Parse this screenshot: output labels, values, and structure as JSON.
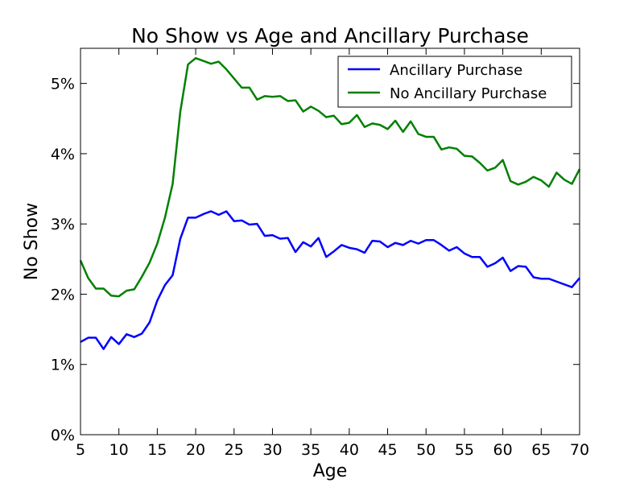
{
  "chart_data": {
    "type": "line",
    "title": "No Show vs Age and Ancillary Purchase",
    "xlabel": "Age",
    "ylabel": "No Show",
    "xlim": [
      5,
      70
    ],
    "ylim": [
      0,
      0.055
    ],
    "x_ticks": [
      5,
      10,
      15,
      20,
      25,
      30,
      35,
      40,
      45,
      50,
      55,
      60,
      65,
      70
    ],
    "x_tick_labels": [
      "5",
      "10",
      "15",
      "20",
      "25",
      "30",
      "35",
      "40",
      "45",
      "50",
      "55",
      "60",
      "65",
      "70"
    ],
    "y_ticks": [
      0,
      0.01,
      0.02,
      0.03,
      0.04,
      0.05
    ],
    "y_tick_labels": [
      "0%",
      "1%",
      "2%",
      "3%",
      "4%",
      "5%"
    ],
    "legend_position": "top-right",
    "grid": false,
    "x": [
      5,
      6,
      7,
      8,
      9,
      10,
      11,
      12,
      13,
      14,
      15,
      16,
      17,
      18,
      19,
      20,
      21,
      22,
      23,
      24,
      25,
      26,
      27,
      28,
      29,
      30,
      31,
      32,
      33,
      34,
      35,
      36,
      37,
      38,
      39,
      40,
      41,
      42,
      43,
      44,
      45,
      46,
      47,
      48,
      49,
      50,
      51,
      52,
      53,
      54,
      55,
      56,
      57,
      58,
      59,
      60,
      61,
      62,
      63,
      64,
      65,
      66,
      67,
      68,
      69,
      70
    ],
    "series": [
      {
        "name": "Ancillary Purchase",
        "color": "#0000ff",
        "values": [
          0.0132,
          0.0138,
          0.0138,
          0.0122,
          0.0139,
          0.0129,
          0.0143,
          0.0139,
          0.0144,
          0.016,
          0.0191,
          0.0213,
          0.0227,
          0.0279,
          0.0309,
          0.0309,
          0.0314,
          0.0318,
          0.0313,
          0.0318,
          0.0304,
          0.0305,
          0.0299,
          0.03,
          0.0283,
          0.0284,
          0.0279,
          0.028,
          0.026,
          0.0274,
          0.0268,
          0.028,
          0.0253,
          0.0261,
          0.027,
          0.0266,
          0.0264,
          0.0259,
          0.0276,
          0.0275,
          0.0267,
          0.0273,
          0.027,
          0.0276,
          0.0272,
          0.0277,
          0.0277,
          0.027,
          0.0262,
          0.0267,
          0.0258,
          0.0253,
          0.0253,
          0.0239,
          0.0244,
          0.0252,
          0.0233,
          0.024,
          0.0239,
          0.0224,
          0.0222,
          0.0222,
          0.0218,
          0.0214,
          0.021,
          0.0223
        ]
      },
      {
        "name": "No Ancillary Purchase",
        "color": "#008000",
        "values": [
          0.0248,
          0.0223,
          0.0208,
          0.0208,
          0.0198,
          0.0197,
          0.0205,
          0.0207,
          0.0225,
          0.0245,
          0.0272,
          0.0309,
          0.0357,
          0.046,
          0.0527,
          0.0536,
          0.0532,
          0.0528,
          0.0531,
          0.052,
          0.0507,
          0.0494,
          0.0494,
          0.0477,
          0.0482,
          0.0481,
          0.0482,
          0.0475,
          0.0476,
          0.046,
          0.0467,
          0.0461,
          0.0452,
          0.0454,
          0.0442,
          0.0444,
          0.0455,
          0.0438,
          0.0443,
          0.0441,
          0.0435,
          0.0447,
          0.0431,
          0.0446,
          0.0428,
          0.0424,
          0.0424,
          0.0406,
          0.0409,
          0.0407,
          0.0397,
          0.0396,
          0.0387,
          0.0376,
          0.038,
          0.0391,
          0.0361,
          0.0356,
          0.036,
          0.0367,
          0.0362,
          0.0353,
          0.0373,
          0.0363,
          0.0357,
          0.0378
        ]
      }
    ]
  }
}
